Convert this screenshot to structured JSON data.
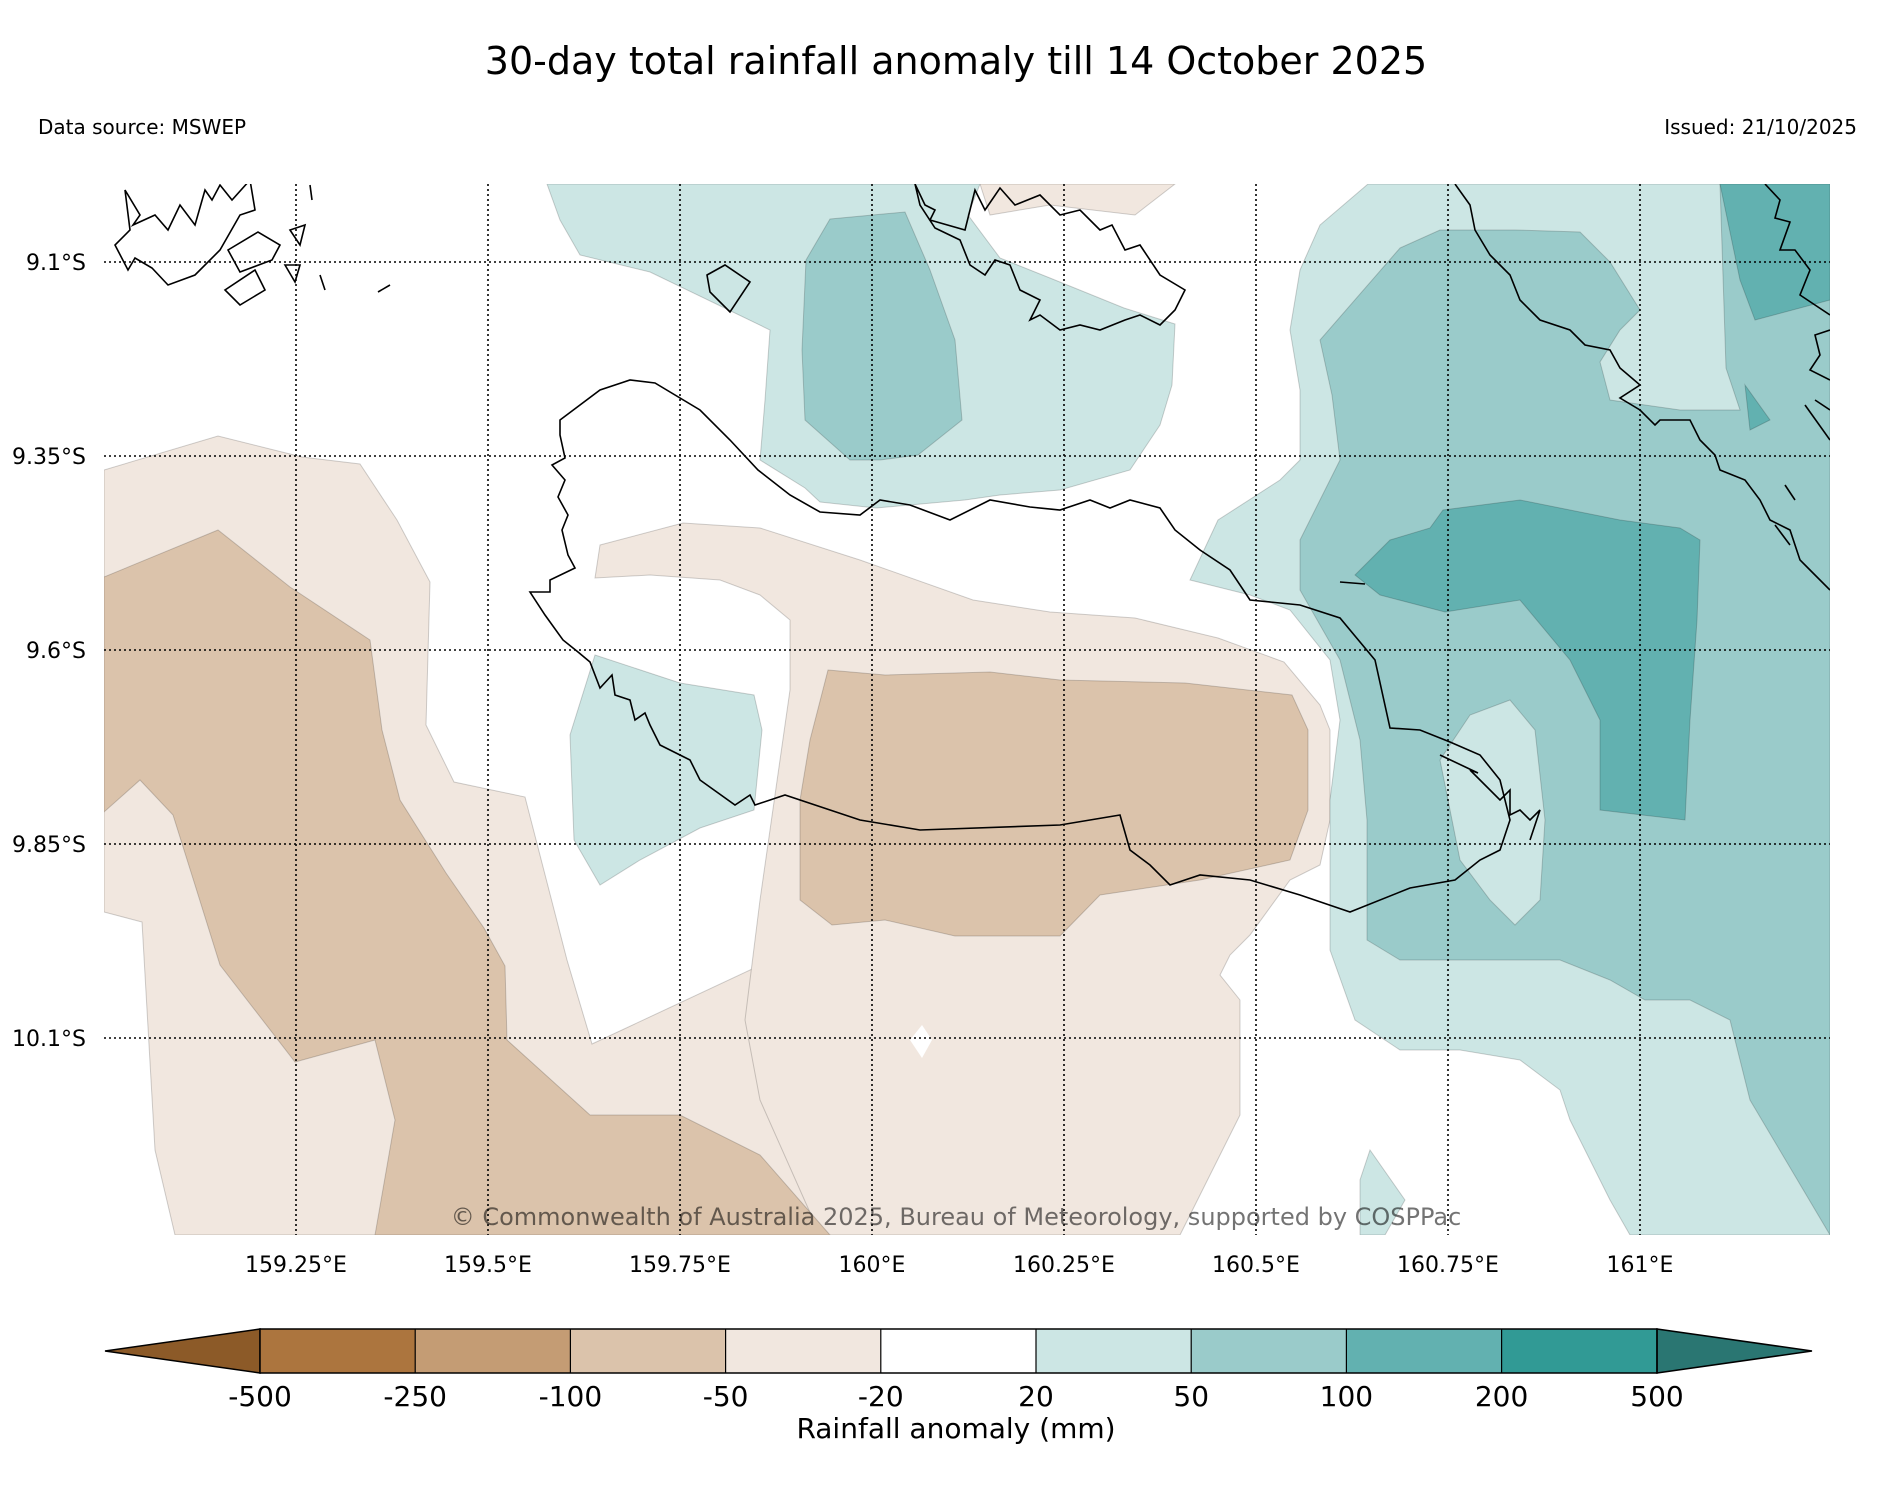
{
  "title": "30-day total rainfall anomaly till 14 October 2025",
  "data_source": "Data source: MSWEP",
  "issued": "Issued: 21/10/2025",
  "copyright": "© Commonwealth of Australia 2025, Bureau of Meteorology, supported by COSPPac",
  "lat_ticks": [
    "9.1°S",
    "9.35°S",
    "9.6°S",
    "9.85°S",
    "10.1°S"
  ],
  "lon_ticks": [
    "159.25°E",
    "159.5°E",
    "159.75°E",
    "160°E",
    "160.25°E",
    "160.5°E",
    "160.75°E",
    "161°E"
  ],
  "colorbar": {
    "label": "Rainfall anomaly (mm)",
    "ticks": [
      "-500",
      "-250",
      "-100",
      "-50",
      "-20",
      "20",
      "50",
      "100",
      "200",
      "500"
    ],
    "colors": [
      "#8c5a28",
      "#ac753e",
      "#c49c74",
      "#dbc3ab",
      "#f1e7df",
      "#ffffff",
      "#cce6e4",
      "#9acbca",
      "#62b1b0",
      "#319a95",
      "#2a7672"
    ]
  },
  "palette": {
    "brown_light": "#f1e7df",
    "brown_mid": "#dbc3ab",
    "teal_light": "#cce6e4",
    "teal_mid": "#9acbca",
    "teal_dark": "#62b1b0"
  }
}
